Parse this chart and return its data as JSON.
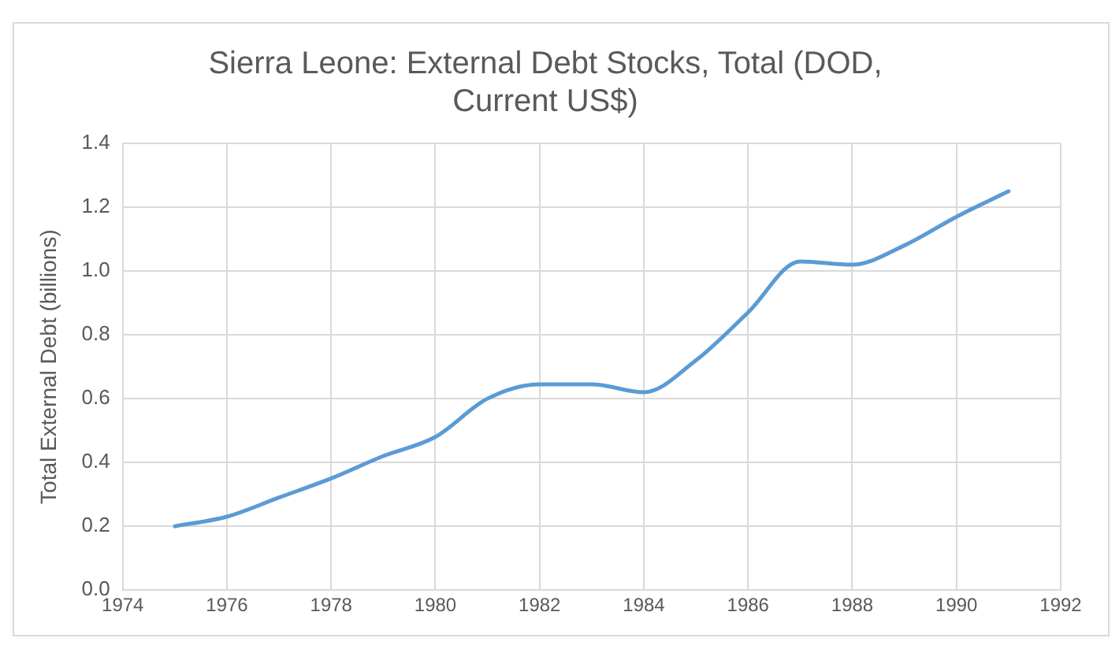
{
  "chart_data": {
    "type": "line",
    "title": [
      "Sierra Leone: External Debt Stocks, Total (DOD,",
      "Current US$)"
    ],
    "ylabel": "Total External Debt (billions)",
    "x": [
      1975,
      1976,
      1977,
      1978,
      1979,
      1980,
      1981,
      1982,
      1983,
      1984,
      1985,
      1986,
      1987,
      1988,
      1989,
      1990,
      1991
    ],
    "series": [
      {
        "color": "#5b9bd5",
        "values": [
          0.2,
          0.23,
          0.29,
          0.35,
          0.42,
          0.48,
          0.6,
          0.645,
          0.645,
          0.62,
          0.72,
          0.87,
          1.03,
          1.02,
          1.08,
          1.17,
          1.25
        ]
      }
    ],
    "xlim": [
      1974,
      1992
    ],
    "xticks": [
      1974,
      1976,
      1978,
      1980,
      1982,
      1984,
      1986,
      1988,
      1990,
      1992
    ],
    "ylim": [
      0,
      1.4
    ],
    "yticks": [
      {
        "value": 0,
        "label": "0.0"
      },
      {
        "value": 0.2,
        "label": "0.2"
      },
      {
        "value": 0.4,
        "label": "0.4"
      },
      {
        "value": 0.6,
        "label": "0.6"
      },
      {
        "value": 0.8,
        "label": "0.8"
      },
      {
        "value": 1.0,
        "label": "1.0"
      },
      {
        "value": 1.2,
        "label": "1.2"
      },
      {
        "value": 1.4,
        "label": "1.4"
      }
    ],
    "grid": true,
    "legend": false,
    "marker": "none",
    "line_style": "solid"
  }
}
